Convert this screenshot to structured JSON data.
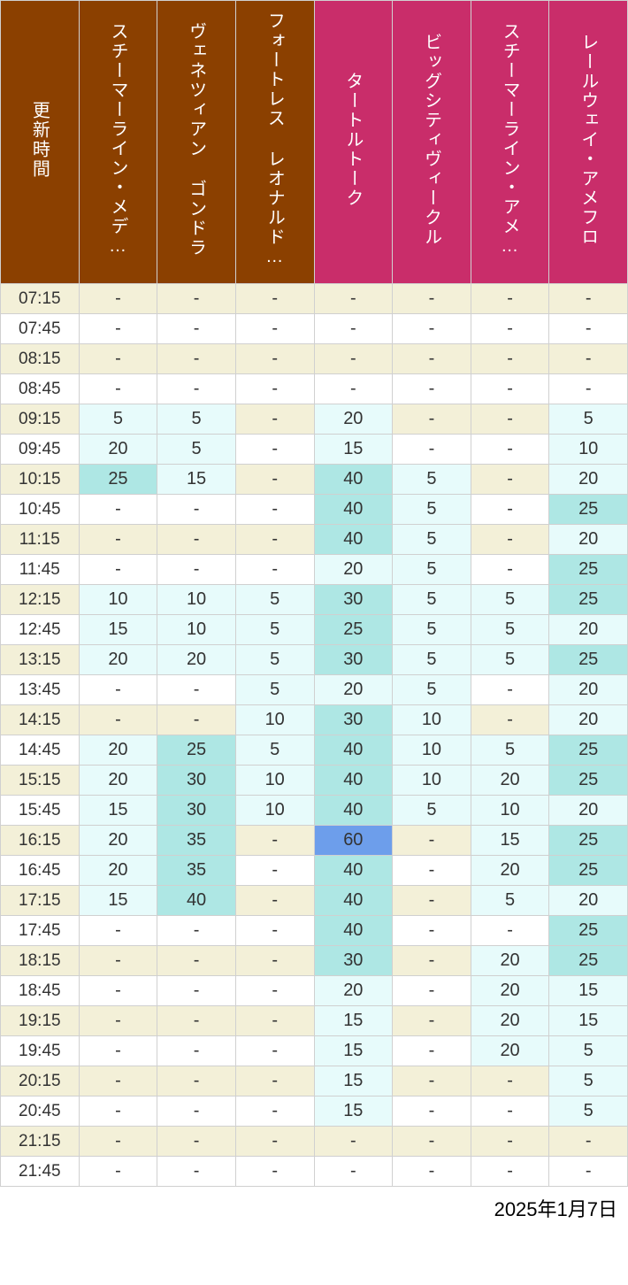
{
  "footer_date": "2025年1月7日",
  "colors": {
    "header_brown": "#8b4000",
    "header_pink": "#c92d6a",
    "time_col_bg": "#f3f0d8",
    "row_alt_bg": "#f3f0d8",
    "row_bg": "#ffffff",
    "cell_border": "#d0d0d0",
    "footer_text": "#000000"
  },
  "wait_color_scale": [
    {
      "min": 0,
      "max": 0,
      "bg": "#ffffff"
    },
    {
      "min": 1,
      "max": 20,
      "bg": "#e7fbfb"
    },
    {
      "min": 21,
      "max": 40,
      "bg": "#aee7e4"
    },
    {
      "min": 41,
      "max": 59,
      "bg": "#aee7e4"
    },
    {
      "min": 60,
      "max": 999,
      "bg": "#6d9eeb"
    }
  ],
  "columns": [
    {
      "key": "time",
      "label": "更新時間",
      "header_color": "#8b4000",
      "is_time": true
    },
    {
      "key": "steam1",
      "label": "スチーマーライン・メデ…",
      "header_color": "#8b4000"
    },
    {
      "key": "gondola",
      "label": "ヴェネツィアン ゴンドラ",
      "header_color": "#8b4000"
    },
    {
      "key": "fort",
      "label": "フォートレス レオナルド…",
      "header_color": "#8b4000"
    },
    {
      "key": "turtle",
      "label": "タートルトーク",
      "header_color": "#c92d6a"
    },
    {
      "key": "bigcity",
      "label": "ビッグシティヴィークル",
      "header_color": "#c92d6a"
    },
    {
      "key": "steam2",
      "label": "スチーマーライン・アメ…",
      "header_color": "#c92d6a"
    },
    {
      "key": "rail",
      "label": "レールウェイ・アメフロ",
      "header_color": "#c92d6a"
    }
  ],
  "times": [
    "07:15",
    "07:45",
    "08:15",
    "08:45",
    "09:15",
    "09:45",
    "10:15",
    "10:45",
    "11:15",
    "11:45",
    "12:15",
    "12:45",
    "13:15",
    "13:45",
    "14:15",
    "14:45",
    "15:15",
    "15:45",
    "16:15",
    "16:45",
    "17:15",
    "17:45",
    "18:15",
    "18:45",
    "19:15",
    "19:45",
    "20:15",
    "20:45",
    "21:15",
    "21:45"
  ],
  "data": {
    "steam1": [
      null,
      null,
      null,
      null,
      5,
      20,
      25,
      null,
      null,
      null,
      10,
      15,
      20,
      null,
      null,
      20,
      20,
      15,
      20,
      20,
      15,
      null,
      null,
      null,
      null,
      null,
      null,
      null,
      null,
      null
    ],
    "gondola": [
      null,
      null,
      null,
      null,
      5,
      5,
      15,
      null,
      null,
      null,
      10,
      10,
      20,
      null,
      null,
      25,
      30,
      30,
      35,
      35,
      40,
      null,
      null,
      null,
      null,
      null,
      null,
      null,
      null,
      null
    ],
    "fort": [
      null,
      null,
      null,
      null,
      null,
      null,
      null,
      null,
      null,
      null,
      5,
      5,
      5,
      5,
      10,
      5,
      10,
      10,
      null,
      null,
      null,
      null,
      null,
      null,
      null,
      null,
      null,
      null,
      null,
      null
    ],
    "turtle": [
      null,
      null,
      null,
      null,
      20,
      15,
      40,
      40,
      40,
      20,
      30,
      25,
      30,
      20,
      30,
      40,
      40,
      40,
      60,
      40,
      40,
      40,
      30,
      20,
      15,
      15,
      15,
      15,
      null,
      null
    ],
    "bigcity": [
      null,
      null,
      null,
      null,
      null,
      null,
      5,
      5,
      5,
      5,
      5,
      5,
      5,
      5,
      10,
      10,
      10,
      5,
      null,
      null,
      null,
      null,
      null,
      null,
      null,
      null,
      null,
      null,
      null,
      null
    ],
    "steam2": [
      null,
      null,
      null,
      null,
      null,
      null,
      null,
      null,
      null,
      null,
      5,
      5,
      5,
      null,
      null,
      5,
      20,
      10,
      15,
      20,
      5,
      null,
      20,
      20,
      20,
      20,
      null,
      null,
      null,
      null
    ],
    "rail": [
      null,
      null,
      null,
      null,
      5,
      10,
      20,
      25,
      20,
      25,
      25,
      20,
      25,
      20,
      20,
      25,
      25,
      20,
      25,
      25,
      20,
      25,
      25,
      15,
      15,
      5,
      5,
      5,
      null,
      null
    ]
  },
  "cell_overrides": {
    "turtle": {
      "6": "#aee7e4",
      "7": "#aee7e4",
      "8": "#aee7e4",
      "10": "#aee7e4",
      "12": "#aee7e4",
      "14": "#aee7e4",
      "15": "#aee7e4",
      "16": "#aee7e4",
      "17": "#aee7e4",
      "18": "#6d9eeb",
      "19": "#aee7e4",
      "20": "#aee7e4",
      "21": "#aee7e4",
      "22": "#aee7e4"
    },
    "steam1": {
      "6": "#aee7e4"
    },
    "gondola": {
      "15": "#aee7e4",
      "16": "#aee7e4",
      "17": "#aee7e4",
      "18": "#aee7e4",
      "19": "#aee7e4",
      "20": "#aee7e4"
    },
    "rail": {
      "7": "#aee7e4",
      "9": "#aee7e4",
      "10": "#aee7e4",
      "12": "#aee7e4",
      "15": "#aee7e4",
      "16": "#aee7e4",
      "18": "#aee7e4",
      "19": "#aee7e4",
      "21": "#aee7e4",
      "22": "#aee7e4"
    }
  }
}
